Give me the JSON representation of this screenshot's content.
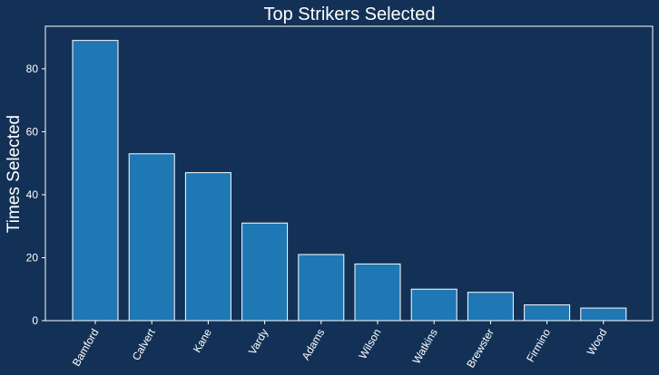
{
  "chart_data": {
    "type": "bar",
    "title": "Top Strikers Selected",
    "xlabel": "",
    "ylabel": "Times Selected",
    "categories": [
      "Bamford",
      "Calvert",
      "Kane",
      "Vardy",
      "Adams",
      "Wilson",
      "Watkins",
      "Brewster",
      "Firmino",
      "Wood"
    ],
    "values": [
      89,
      53,
      47,
      31,
      21,
      18,
      10,
      9,
      5,
      4
    ],
    "ylim": [
      0,
      93.5
    ],
    "yticks": [
      0,
      20,
      40,
      60,
      80
    ],
    "grid": false,
    "legend": "none",
    "colors": {
      "background": "#133156",
      "bar": "#1f77b4",
      "edge": "#ffffff",
      "text": "#ffffff"
    }
  }
}
